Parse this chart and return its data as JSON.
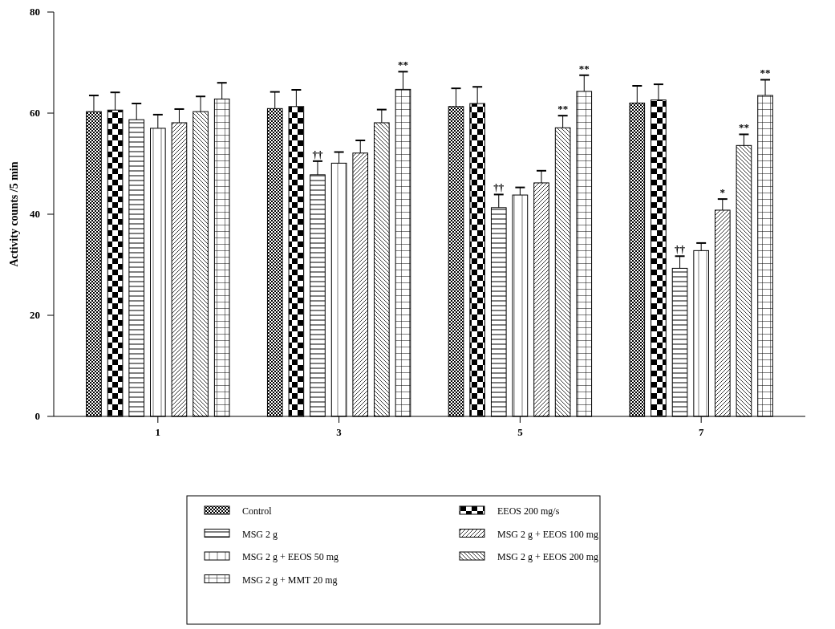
{
  "chart_data": {
    "type": "bar",
    "ylabel": "Activity counts /5 min",
    "categories": [
      "1",
      "3",
      "5",
      "7"
    ],
    "ylim": [
      0,
      80
    ],
    "yticks": [
      0,
      20,
      40,
      60,
      80
    ],
    "legend": "bottom",
    "grid": false,
    "series": [
      {
        "name": "Control",
        "color": "#000000",
        "values": [
          60.3,
          60.9,
          61.3,
          62.0
        ],
        "errors": [
          3.2,
          3.3,
          3.6,
          3.4
        ]
      },
      {
        "name": "EEOS 200 mg/s",
        "color": "#000000",
        "values": [
          60.6,
          61.3,
          61.9,
          62.6
        ],
        "errors": [
          3.5,
          3.3,
          3.3,
          3.1
        ]
      },
      {
        "name": "MSG 2 g",
        "color": "#000000",
        "values": [
          58.7,
          47.8,
          41.3,
          29.3
        ],
        "errors": [
          3.2,
          2.7,
          2.6,
          2.4
        ]
      },
      {
        "name": "MSG 2 g + EEOS 50 mg",
        "color": "#000000",
        "values": [
          57.0,
          50.1,
          43.8,
          32.8
        ],
        "errors": [
          2.7,
          2.2,
          1.5,
          1.5
        ]
      },
      {
        "name": "MSG 2 g + EEOS 100 mg",
        "color": "#000000",
        "values": [
          58.1,
          52.1,
          46.2,
          40.8
        ],
        "errors": [
          2.7,
          2.5,
          2.4,
          2.2
        ]
      },
      {
        "name": "MSG 2 g + EEOS 200 mg",
        "color": "#000000",
        "values": [
          60.3,
          58.1,
          57.1,
          53.6
        ],
        "errors": [
          3.0,
          2.6,
          2.4,
          2.2
        ]
      },
      {
        "name": "MSG 2 g + MMT 20 mg",
        "color": "#000000",
        "values": [
          62.8,
          64.7,
          64.3,
          63.5
        ],
        "errors": [
          3.2,
          3.5,
          3.2,
          3.1
        ]
      }
    ],
    "annotations": [
      "††",
      "**",
      "††",
      "**",
      "**",
      "††",
      "*",
      "**",
      "**"
    ]
  }
}
